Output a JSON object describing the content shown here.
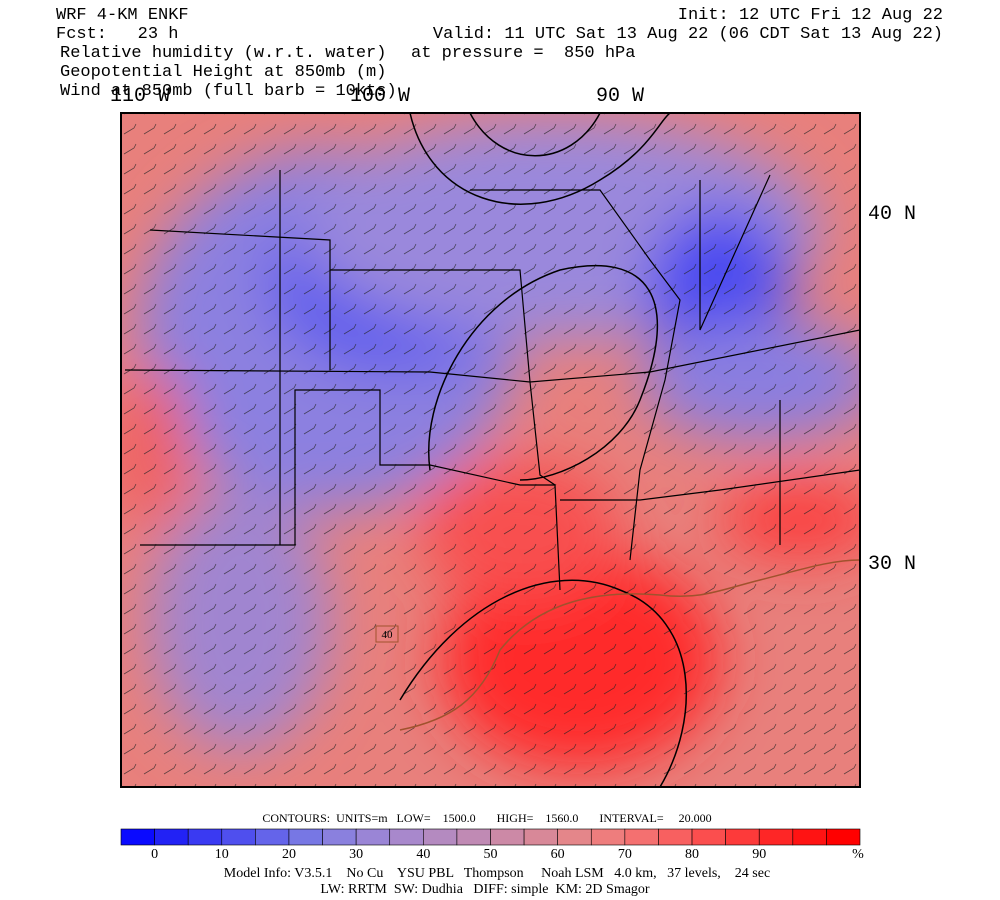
{
  "header": {
    "title": "WRF 4-KM ENKF",
    "forecast": "Fcst:   23 h",
    "init": "Init: 12 UTC Fri 12 Aug 22",
    "valid": "Valid: 11 UTC Sat 13 Aug 22 (06 CDT Sat 13 Aug 22)",
    "fields": [
      "Relative humidity (w.r.t. water)",
      "Geopotential Height at 850mb (m)",
      "Wind at 850mb (full barb = 10kts)"
    ],
    "pressure": "at pressure =  850 hPa"
  },
  "map": {
    "lon_labels": [
      "110 W",
      "100 W",
      "90 W"
    ],
    "lat_labels": [
      "40 N",
      "30 N"
    ],
    "contour_label": "40"
  },
  "contour_info": "CONTOURS:  UNITS=m   LOW=    1500.0       HIGH=    1560.0       INTERVAL=     20.000",
  "colorbar": {
    "colors": [
      "#0a0aff",
      "#2222f5",
      "#3a3af2",
      "#4f4fee",
      "#6464ea",
      "#7777e4",
      "#8a80de",
      "#9a85d6",
      "#a888cc",
      "#b48ac0",
      "#c08ab4",
      "#cc89a6",
      "#d88898",
      "#e4868a",
      "#ee7d7d",
      "#f47070",
      "#f86060",
      "#fb4e4e",
      "#fd3a3a",
      "#fe2626",
      "#ff1313",
      "#ff0000"
    ],
    "ticks": [
      0,
      10,
      20,
      30,
      40,
      50,
      60,
      70,
      80,
      90
    ],
    "unit": "%"
  },
  "footer": [
    "Model Info: V3.5.1    No Cu    YSU PBL   Thompson     Noah LSM   4.0 km,   37 levels,    24 sec",
    "LW: RRTM  SW: Dudhia   DIFF: simple  KM: 2D Smagor"
  ]
}
